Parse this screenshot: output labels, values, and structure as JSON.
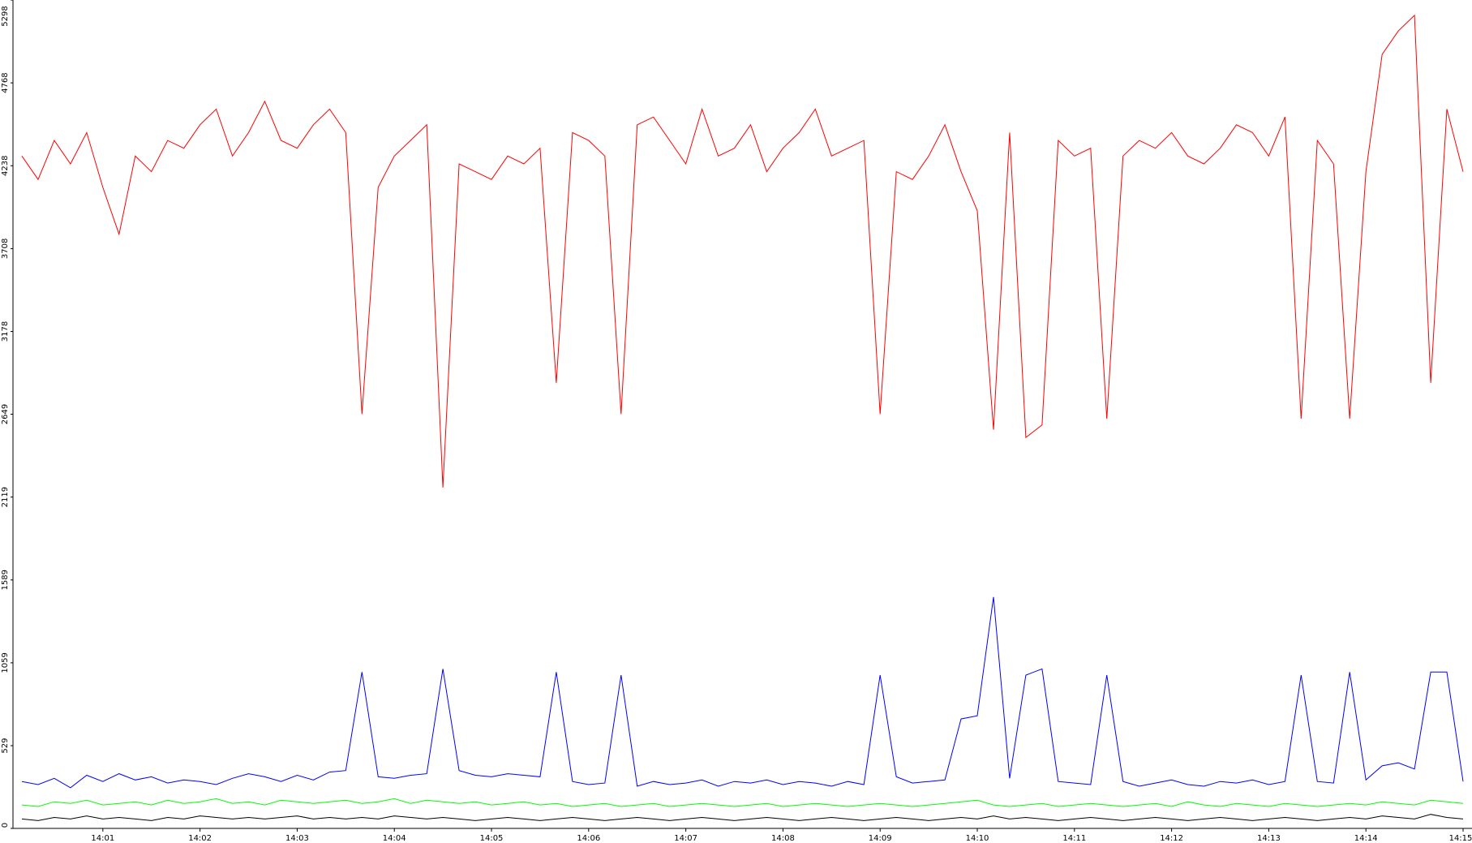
{
  "chart_data": {
    "type": "line",
    "categories": [
      null,
      null,
      null,
      null,
      null,
      "14:01",
      null,
      null,
      null,
      null,
      null,
      "14:02",
      null,
      null,
      null,
      null,
      null,
      "14:03",
      null,
      null,
      null,
      null,
      null,
      "14:04",
      null,
      null,
      null,
      null,
      null,
      "14:05",
      null,
      null,
      null,
      null,
      null,
      "14:06",
      null,
      null,
      null,
      null,
      null,
      "14:07",
      null,
      null,
      null,
      null,
      null,
      "14:08",
      null,
      null,
      null,
      null,
      null,
      "14:09",
      null,
      null,
      null,
      null,
      null,
      "14:10",
      null,
      null,
      null,
      null,
      null,
      "14:11",
      null,
      null,
      null,
      null,
      null,
      "14:12",
      null,
      null,
      null,
      null,
      null,
      "14:13",
      null,
      null,
      null,
      null,
      null,
      "14:14",
      null,
      null,
      null,
      null,
      null,
      "14:15"
    ],
    "series": [
      {
        "color": "#ff0000",
        "values": [
          4300,
          4150,
          4400,
          4250,
          4450,
          4100,
          3800,
          4300,
          4200,
          4400,
          4350,
          4500,
          4600,
          4300,
          4450,
          4650,
          4400,
          4350,
          4500,
          4600,
          4450,
          2650,
          4100,
          4300,
          4400,
          4500,
          2180,
          4250,
          4200,
          4150,
          4300,
          4250,
          4350,
          2850,
          4450,
          4400,
          4300,
          2650,
          4500,
          4550,
          4400,
          4250,
          4600,
          4300,
          4350,
          4500,
          4200,
          4350,
          4450,
          4600,
          4300,
          4350,
          4400,
          2650,
          4200,
          4150,
          4300,
          4500,
          4200,
          3950,
          2550,
          4450,
          2500,
          2580,
          4400,
          4300,
          4350,
          2620,
          4300,
          4400,
          4350,
          4450,
          4300,
          4250,
          4350,
          4500,
          4450,
          4300,
          4550,
          2620,
          4400,
          4250,
          2620,
          4200,
          4950,
          5100,
          5200,
          2850,
          4600,
          4200
        ]
      },
      {
        "color": "#0000ff",
        "values": [
          300,
          280,
          320,
          260,
          340,
          300,
          350,
          310,
          330,
          290,
          310,
          300,
          280,
          320,
          350,
          330,
          300,
          340,
          310,
          360,
          370,
          1000,
          330,
          320,
          340,
          350,
          1020,
          370,
          340,
          330,
          350,
          340,
          330,
          1000,
          300,
          280,
          290,
          980,
          270,
          300,
          280,
          290,
          310,
          270,
          300,
          290,
          310,
          280,
          300,
          290,
          270,
          300,
          280,
          980,
          330,
          290,
          300,
          310,
          700,
          720,
          1480,
          320,
          980,
          1020,
          300,
          290,
          280,
          980,
          300,
          270,
          290,
          310,
          280,
          270,
          300,
          290,
          310,
          280,
          300,
          980,
          300,
          290,
          1000,
          310,
          400,
          420,
          380,
          1000,
          1000,
          300
        ]
      },
      {
        "color": "#00ff00",
        "values": [
          150,
          140,
          170,
          160,
          180,
          150,
          160,
          170,
          150,
          180,
          160,
          170,
          190,
          160,
          170,
          150,
          180,
          170,
          160,
          170,
          180,
          160,
          170,
          190,
          160,
          180,
          170,
          160,
          170,
          150,
          160,
          170,
          150,
          160,
          140,
          150,
          160,
          140,
          150,
          160,
          140,
          150,
          160,
          150,
          140,
          150,
          160,
          140,
          150,
          160,
          150,
          140,
          150,
          160,
          150,
          140,
          150,
          160,
          170,
          180,
          150,
          140,
          150,
          160,
          140,
          150,
          160,
          150,
          140,
          150,
          160,
          140,
          170,
          150,
          140,
          160,
          150,
          140,
          160,
          150,
          140,
          150,
          160,
          150,
          170,
          160,
          150,
          180,
          170,
          160
        ]
      },
      {
        "color": "#000000",
        "values": [
          60,
          50,
          70,
          60,
          80,
          60,
          70,
          60,
          50,
          70,
          60,
          80,
          70,
          60,
          70,
          60,
          70,
          80,
          60,
          70,
          60,
          70,
          60,
          80,
          70,
          60,
          70,
          60,
          50,
          60,
          70,
          60,
          50,
          60,
          70,
          60,
          50,
          60,
          70,
          60,
          50,
          60,
          70,
          60,
          50,
          60,
          70,
          60,
          50,
          60,
          70,
          60,
          50,
          60,
          70,
          60,
          50,
          60,
          70,
          60,
          80,
          60,
          70,
          60,
          50,
          60,
          70,
          60,
          50,
          60,
          70,
          60,
          50,
          60,
          70,
          60,
          50,
          60,
          70,
          60,
          50,
          60,
          70,
          60,
          80,
          70,
          60,
          90,
          70,
          60
        ]
      }
    ],
    "ylim": [
      0,
      5298
    ],
    "yticks": [
      0,
      529,
      1059,
      1589,
      2119,
      2649,
      3178,
      3708,
      4238,
      4768,
      5298
    ]
  }
}
